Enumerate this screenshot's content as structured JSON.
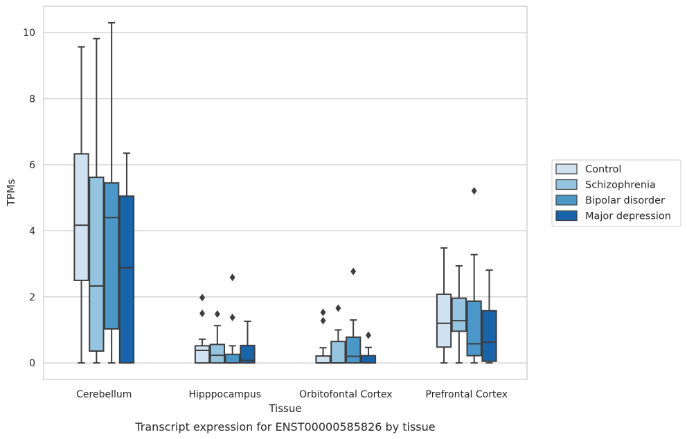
{
  "chart_data": {
    "type": "box",
    "title": "",
    "caption": "Transcript expression for ENST00000585826 by tissue",
    "xlabel": "Tissue",
    "ylabel": "TPMs",
    "ylim": [
      -0.5,
      10.8
    ],
    "yticks": [
      0,
      2,
      4,
      6,
      8,
      10
    ],
    "grid": "horizontal",
    "legend_position": "right",
    "categories": [
      "Cerebellum",
      "Hipppocampus",
      "Orbitofontal Cortex",
      "Prefrontal Cortex"
    ],
    "series": [
      {
        "name": "Control",
        "color": "#d0e1f2",
        "boxes": [
          {
            "whislo": 0.0,
            "q1": 2.5,
            "med": 4.17,
            "q3": 6.33,
            "whishi": 9.57,
            "fliers": []
          },
          {
            "whislo": 0.0,
            "q1": 0.0,
            "med": 0.38,
            "q3": 0.52,
            "whishi": 0.72,
            "fliers": [
              1.5,
              1.98
            ]
          },
          {
            "whislo": 0.0,
            "q1": 0.0,
            "med": 0.0,
            "q3": 0.21,
            "whishi": 0.46,
            "fliers": [
              1.28,
              1.53
            ]
          },
          {
            "whislo": 0.0,
            "q1": 0.48,
            "med": 1.2,
            "q3": 2.08,
            "whishi": 3.48,
            "fliers": []
          }
        ]
      },
      {
        "name": "Schizophrenia",
        "color": "#94c4df",
        "boxes": [
          {
            "whislo": 0.0,
            "q1": 0.36,
            "med": 2.33,
            "q3": 5.62,
            "whishi": 9.82,
            "fliers": []
          },
          {
            "whislo": 0.0,
            "q1": 0.0,
            "med": 0.23,
            "q3": 0.56,
            "whishi": 1.13,
            "fliers": [
              1.48
            ]
          },
          {
            "whislo": 0.0,
            "q1": 0.0,
            "med": 0.0,
            "q3": 0.65,
            "whishi": 1.0,
            "fliers": [
              1.66
            ]
          },
          {
            "whislo": 0.0,
            "q1": 0.96,
            "med": 1.28,
            "q3": 1.96,
            "whishi": 2.94,
            "fliers": []
          }
        ]
      },
      {
        "name": "Bipolar disorder",
        "color": "#4a98c9",
        "boxes": [
          {
            "whislo": 0.0,
            "q1": 1.03,
            "med": 4.4,
            "q3": 5.45,
            "whishi": 10.3,
            "fliers": []
          },
          {
            "whislo": 0.0,
            "q1": 0.0,
            "med": 0.0,
            "q3": 0.26,
            "whishi": 0.52,
            "fliers": [
              1.38,
              2.59
            ]
          },
          {
            "whislo": 0.0,
            "q1": 0.0,
            "med": 0.2,
            "q3": 0.78,
            "whishi": 1.3,
            "fliers": [
              2.77
            ]
          },
          {
            "whislo": 0.0,
            "q1": 0.22,
            "med": 0.58,
            "q3": 1.87,
            "whishi": 3.28,
            "fliers": [
              5.21
            ]
          }
        ]
      },
      {
        "name": "Major depression",
        "color": "#1764ab",
        "boxes": [
          {
            "whislo": 0.0,
            "q1": 0.0,
            "med": 2.88,
            "q3": 5.05,
            "whishi": 6.35,
            "fliers": []
          },
          {
            "whislo": 0.0,
            "q1": 0.0,
            "med": 0.08,
            "q3": 0.53,
            "whishi": 1.26,
            "fliers": []
          },
          {
            "whislo": 0.0,
            "q1": 0.0,
            "med": 0.0,
            "q3": 0.22,
            "whishi": 0.47,
            "fliers": [
              0.84
            ]
          },
          {
            "whislo": 0.0,
            "q1": 0.05,
            "med": 0.63,
            "q3": 1.58,
            "whishi": 2.81,
            "fliers": []
          }
        ]
      }
    ]
  }
}
